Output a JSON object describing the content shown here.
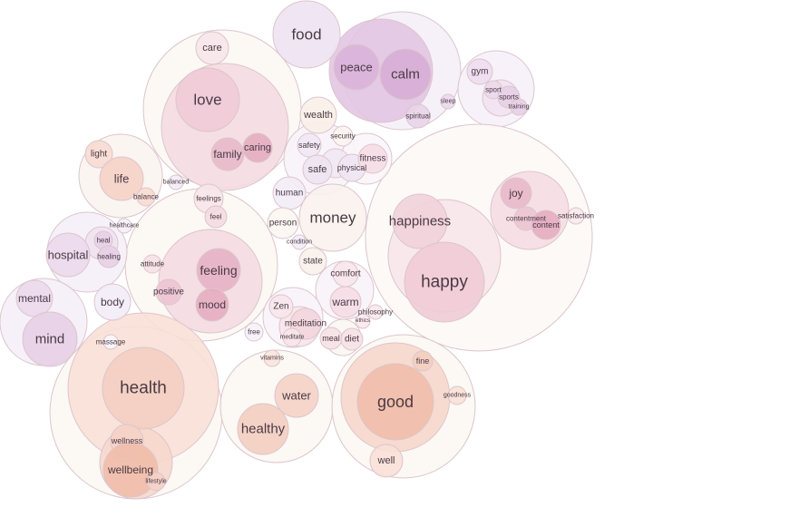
{
  "chart_data": {
    "type": "packed-bubble",
    "title": "",
    "palette": {
      "pink": "#e8b4c4",
      "rose": "#d98aa5",
      "salmon": "#eaa58e",
      "purple": "#cf9fcf",
      "lavender": "#e2d0ea",
      "cream": "#f6e8de",
      "stroke": "#dcc5cc"
    },
    "words": [
      "food",
      "peace",
      "calm",
      "sleep",
      "spiritual",
      "gym",
      "sport",
      "sports",
      "training",
      "care",
      "love",
      "family",
      "caring",
      "wealth",
      "security",
      "safety",
      "safe",
      "physical",
      "fitness",
      "light",
      "life",
      "balance",
      "balanced",
      "feelings",
      "feel",
      "human",
      "money",
      "person",
      "condition",
      "state",
      "happiness",
      "happy",
      "joy",
      "contentment",
      "content",
      "satisfaction",
      "healthcare",
      "heal",
      "healing",
      "hospital",
      "attitude",
      "feeling",
      "positive",
      "mood",
      "body",
      "comfort",
      "warm",
      "philosophy",
      "ethics",
      "Zen",
      "meditation",
      "meditate",
      "free",
      "meal",
      "diet",
      "mental",
      "mind",
      "massage",
      "vitamins",
      "fine",
      "goodness",
      "health",
      "water",
      "healthy",
      "good",
      "wellness",
      "wellbeing",
      "lifestyle",
      "well"
    ]
  }
}
